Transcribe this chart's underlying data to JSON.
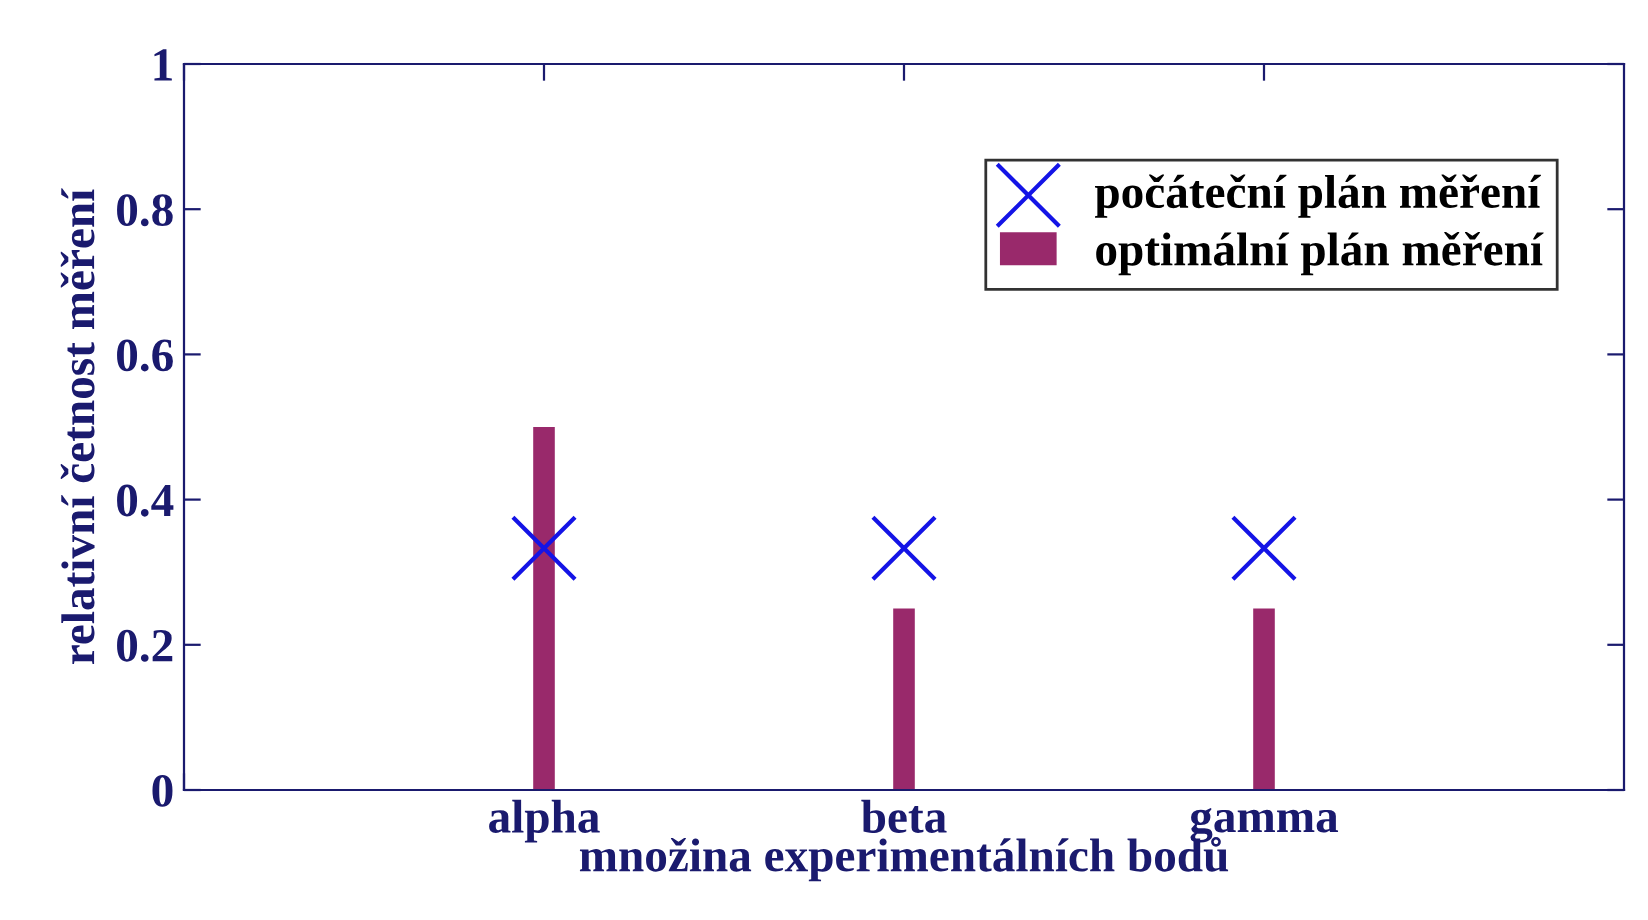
{
  "chart_data": {
    "type": "bar",
    "xlabel": "množina experimentálních bodů",
    "ylabel": "relativní četnost měření",
    "categories": [
      null,
      "alpha",
      "beta",
      "gamma"
    ],
    "series": [
      {
        "name": "počáteční plán měření",
        "type": "scatter",
        "marker": "cross",
        "color": "#1414e6",
        "values": [
          null,
          0.333,
          0.333,
          0.333
        ]
      },
      {
        "name": "optimální plán měření",
        "color": "#99296b",
        "values": [
          null,
          0.5,
          0.25,
          0.25
        ]
      }
    ],
    "ylim": [
      0,
      1
    ],
    "yticks": [
      0,
      0.2,
      0.4,
      0.6,
      0.8,
      1
    ],
    "grid": false,
    "legend": "top right"
  }
}
